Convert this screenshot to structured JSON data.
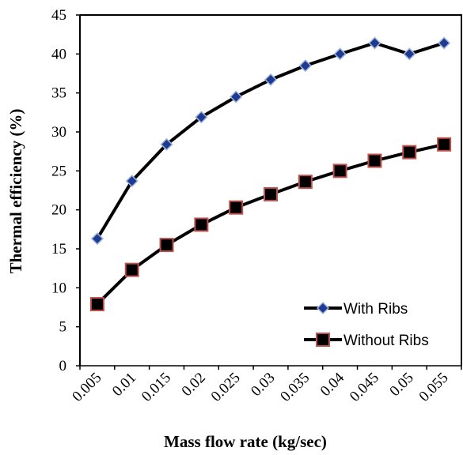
{
  "chart_data": {
    "type": "line",
    "categories": [
      "0.005",
      "0.01",
      "0.015",
      "0.02",
      "0.025",
      "0.03",
      "0.035",
      "0.04",
      "0.045",
      "0.05",
      "0.055"
    ],
    "series": [
      {
        "name": "With Ribs",
        "values": [
          16.3,
          23.7,
          28.4,
          31.9,
          34.5,
          36.7,
          38.5,
          40.0,
          41.4,
          40.0,
          41.4
        ],
        "line_color": "#000000",
        "marker": "diamond",
        "marker_fill": "#1f3a93",
        "marker_edge": "#9fb6da"
      },
      {
        "name": "Without Ribs",
        "values": [
          7.9,
          12.3,
          15.5,
          18.1,
          20.3,
          22.0,
          23.6,
          25.0,
          26.3,
          27.4,
          28.4
        ],
        "line_color": "#000000",
        "marker": "square",
        "marker_fill": "#000000",
        "marker_edge": "#c0504d"
      }
    ],
    "xlabel": "Mass flow rate (kg/sec)",
    "ylabel": "Thermal efficiency (%)",
    "ylim": [
      0,
      45
    ],
    "yticks": [
      0,
      5,
      10,
      15,
      20,
      25,
      30,
      35,
      40,
      45
    ],
    "grid": false,
    "legend_position": "bottom-right"
  }
}
